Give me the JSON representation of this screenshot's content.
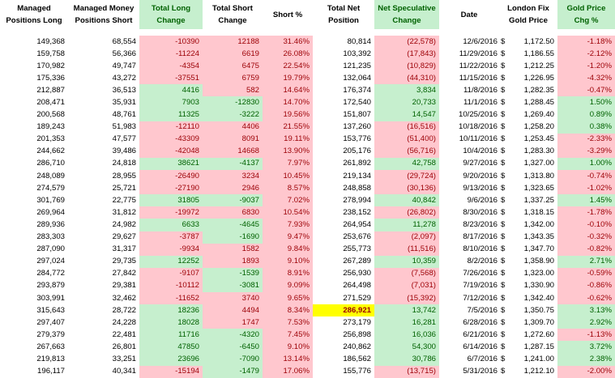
{
  "headers": [
    {
      "label": "Managed Positions Long",
      "style": "plain"
    },
    {
      "label": "Managed Money Positions Short",
      "style": "plain"
    },
    {
      "label": "Total Long Change",
      "style": "green"
    },
    {
      "label": "Total Short Change",
      "style": "plain"
    },
    {
      "label": "Short %",
      "style": "plain"
    },
    {
      "label": "Total Net Position",
      "style": "plain"
    },
    {
      "label": "Net Speculative Change",
      "style": "green"
    },
    {
      "label": "Date",
      "style": "plain"
    },
    {
      "label": "London Fix Gold Price",
      "style": "plain"
    },
    {
      "label": "Gold Price Chg %",
      "style": "green"
    }
  ],
  "currency_symbol": "$",
  "colors": {
    "neg_fill": "#ffc7ce",
    "neg_text": "#9c0006",
    "pos_fill": "#c6efce",
    "pos_text": "#006100",
    "highlight": "#ffff00"
  },
  "rows": [
    {
      "long": "149,368",
      "short": "68,554",
      "long_chg": "-10390",
      "short_chg": "12188",
      "short_pct": "31.46%",
      "net": "80,814",
      "net_chg": "(22,578)",
      "date": "12/6/2016",
      "price": "1,172.50",
      "price_chg": "-1.18%"
    },
    {
      "long": "159,758",
      "short": "56,366",
      "long_chg": "-11224",
      "short_chg": "6619",
      "short_pct": "26.08%",
      "net": "103,392",
      "net_chg": "(17,843)",
      "date": "11/29/2016",
      "price": "1,186.55",
      "price_chg": "-2.12%"
    },
    {
      "long": "170,982",
      "short": "49,747",
      "long_chg": "-4354",
      "short_chg": "6475",
      "short_pct": "22.54%",
      "net": "121,235",
      "net_chg": "(10,829)",
      "date": "11/22/2016",
      "price": "1,212.25",
      "price_chg": "-1.20%"
    },
    {
      "long": "175,336",
      "short": "43,272",
      "long_chg": "-37551",
      "short_chg": "6759",
      "short_pct": "19.79%",
      "net": "132,064",
      "net_chg": "(44,310)",
      "date": "11/15/2016",
      "price": "1,226.95",
      "price_chg": "-4.32%"
    },
    {
      "long": "212,887",
      "short": "36,513",
      "long_chg": "4416",
      "short_chg": "582",
      "short_pct": "14.64%",
      "net": "176,374",
      "net_chg": "3,834",
      "date": "11/8/2016",
      "price": "1,282.35",
      "price_chg": "-0.47%"
    },
    {
      "long": "208,471",
      "short": "35,931",
      "long_chg": "7903",
      "short_chg": "-12830",
      "short_pct": "14.70%",
      "net": "172,540",
      "net_chg": "20,733",
      "date": "11/1/2016",
      "price": "1,288.45",
      "price_chg": "1.50%"
    },
    {
      "long": "200,568",
      "short": "48,761",
      "long_chg": "11325",
      "short_chg": "-3222",
      "short_pct": "19.56%",
      "net": "151,807",
      "net_chg": "14,547",
      "date": "10/25/2016",
      "price": "1,269.40",
      "price_chg": "0.89%"
    },
    {
      "long": "189,243",
      "short": "51,983",
      "long_chg": "-12110",
      "short_chg": "4406",
      "short_pct": "21.55%",
      "net": "137,260",
      "net_chg": "(16,516)",
      "date": "10/18/2016",
      "price": "1,258.20",
      "price_chg": "0.38%"
    },
    {
      "long": "201,353",
      "short": "47,577",
      "long_chg": "-43309",
      "short_chg": "8091",
      "short_pct": "19.11%",
      "net": "153,776",
      "net_chg": "(51,400)",
      "date": "10/11/2016",
      "price": "1,253.45",
      "price_chg": "-2.33%"
    },
    {
      "long": "244,662",
      "short": "39,486",
      "long_chg": "-42048",
      "short_chg": "14668",
      "short_pct": "13.90%",
      "net": "205,176",
      "net_chg": "(56,716)",
      "date": "10/4/2016",
      "price": "1,283.30",
      "price_chg": "-3.29%"
    },
    {
      "long": "286,710",
      "short": "24,818",
      "long_chg": "38621",
      "short_chg": "-4137",
      "short_pct": "7.97%",
      "net": "261,892",
      "net_chg": "42,758",
      "date": "9/27/2016",
      "price": "1,327.00",
      "price_chg": "1.00%"
    },
    {
      "long": "248,089",
      "short": "28,955",
      "long_chg": "-26490",
      "short_chg": "3234",
      "short_pct": "10.45%",
      "net": "219,134",
      "net_chg": "(29,724)",
      "date": "9/20/2016",
      "price": "1,313.80",
      "price_chg": "-0.74%"
    },
    {
      "long": "274,579",
      "short": "25,721",
      "long_chg": "-27190",
      "short_chg": "2946",
      "short_pct": "8.57%",
      "net": "248,858",
      "net_chg": "(30,136)",
      "date": "9/13/2016",
      "price": "1,323.65",
      "price_chg": "-1.02%"
    },
    {
      "long": "301,769",
      "short": "22,775",
      "long_chg": "31805",
      "short_chg": "-9037",
      "short_pct": "7.02%",
      "net": "278,994",
      "net_chg": "40,842",
      "date": "9/6/2016",
      "price": "1,337.25",
      "price_chg": "1.45%"
    },
    {
      "long": "269,964",
      "short": "31,812",
      "long_chg": "-19972",
      "short_chg": "6830",
      "short_pct": "10.54%",
      "net": "238,152",
      "net_chg": "(26,802)",
      "date": "8/30/2016",
      "price": "1,318.15",
      "price_chg": "-1.78%"
    },
    {
      "long": "289,936",
      "short": "24,982",
      "long_chg": "6633",
      "short_chg": "-4645",
      "short_pct": "7.93%",
      "net": "264,954",
      "net_chg": "11,278",
      "date": "8/23/2016",
      "price": "1,342.00",
      "price_chg": "-0.10%"
    },
    {
      "long": "283,303",
      "short": "29,627",
      "long_chg": "-3787",
      "short_chg": "-1690",
      "short_pct": "9.47%",
      "net": "253,676",
      "net_chg": "(2,097)",
      "date": "8/17/2016",
      "price": "1,343.35",
      "price_chg": "-0.32%"
    },
    {
      "long": "287,090",
      "short": "31,317",
      "long_chg": "-9934",
      "short_chg": "1582",
      "short_pct": "9.84%",
      "net": "255,773",
      "net_chg": "(11,516)",
      "date": "8/10/2016",
      "price": "1,347.70",
      "price_chg": "-0.82%"
    },
    {
      "long": "297,024",
      "short": "29,735",
      "long_chg": "12252",
      "short_chg": "1893",
      "short_pct": "9.10%",
      "net": "267,289",
      "net_chg": "10,359",
      "date": "8/2/2016",
      "price": "1,358.90",
      "price_chg": "2.71%"
    },
    {
      "long": "284,772",
      "short": "27,842",
      "long_chg": "-9107",
      "short_chg": "-1539",
      "short_pct": "8.91%",
      "net": "256,930",
      "net_chg": "(7,568)",
      "date": "7/26/2016",
      "price": "1,323.00",
      "price_chg": "-0.59%"
    },
    {
      "long": "293,879",
      "short": "29,381",
      "long_chg": "-10112",
      "short_chg": "-3081",
      "short_pct": "9.09%",
      "net": "264,498",
      "net_chg": "(7,031)",
      "date": "7/19/2016",
      "price": "1,330.90",
      "price_chg": "-0.86%"
    },
    {
      "long": "303,991",
      "short": "32,462",
      "long_chg": "-11652",
      "short_chg": "3740",
      "short_pct": "9.65%",
      "net": "271,529",
      "net_chg": "(15,392)",
      "date": "7/12/2016",
      "price": "1,342.40",
      "price_chg": "-0.62%"
    },
    {
      "long": "315,643",
      "short": "28,722",
      "long_chg": "18236",
      "short_chg": "4494",
      "short_pct": "8.34%",
      "net": "286,921",
      "net_chg": "13,742",
      "date": "7/5/2016",
      "price": "1,350.75",
      "price_chg": "3.13%",
      "net_highlight": true
    },
    {
      "long": "297,407",
      "short": "24,228",
      "long_chg": "18028",
      "short_chg": "1747",
      "short_pct": "7.53%",
      "net": "273,179",
      "net_chg": "16,281",
      "date": "6/28/2016",
      "price": "1,309.70",
      "price_chg": "2.92%"
    },
    {
      "long": "279,379",
      "short": "22,481",
      "long_chg": "11716",
      "short_chg": "-4320",
      "short_pct": "7.45%",
      "net": "256,898",
      "net_chg": "16,036",
      "date": "6/21/2016",
      "price": "1,272.60",
      "price_chg": "-1.13%"
    },
    {
      "long": "267,663",
      "short": "26,801",
      "long_chg": "47850",
      "short_chg": "-6450",
      "short_pct": "9.10%",
      "net": "240,862",
      "net_chg": "54,300",
      "date": "6/14/2016",
      "price": "1,287.15",
      "price_chg": "3.72%"
    },
    {
      "long": "219,813",
      "short": "33,251",
      "long_chg": "23696",
      "short_chg": "-7090",
      "short_pct": "13.14%",
      "net": "186,562",
      "net_chg": "30,786",
      "date": "6/7/2016",
      "price": "1,241.00",
      "price_chg": "2.38%"
    },
    {
      "long": "196,117",
      "short": "40,341",
      "long_chg": "-15194",
      "short_chg": "-1479",
      "short_pct": "17.06%",
      "net": "155,776",
      "net_chg": "(13,715)",
      "date": "5/31/2016",
      "price": "1,212.10",
      "price_chg": "-2.00%"
    }
  ]
}
